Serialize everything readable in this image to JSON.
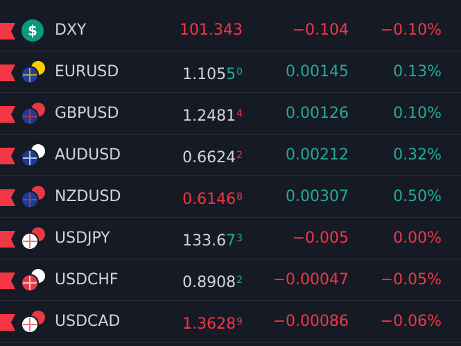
{
  "watchlist": {
    "colors": {
      "up": "#22ab94",
      "down": "#f23645",
      "neutral": "#d1d4dc"
    },
    "rows": [
      {
        "symbol": "DXY",
        "icon": "$",
        "price": [
          {
            "text": "101.343",
            "color": "down"
          }
        ],
        "price_sup": null,
        "change": "−0.104",
        "change_color": "down",
        "change_pct": "−0.10%",
        "pct_color": "down"
      },
      {
        "symbol": "EURUSD",
        "price": [
          {
            "text": "1.105",
            "color": "neutral"
          },
          {
            "text": "5",
            "color": "up"
          }
        ],
        "price_sup": {
          "text": "0",
          "color": "up"
        },
        "change": "0.00145",
        "change_color": "up",
        "change_pct": "0.13%",
        "pct_color": "up"
      },
      {
        "symbol": "GBPUSD",
        "price": [
          {
            "text": "1.2481",
            "color": "neutral"
          }
        ],
        "price_sup": {
          "text": "4",
          "color": "down"
        },
        "change": "0.00126",
        "change_color": "up",
        "change_pct": "0.10%",
        "pct_color": "up"
      },
      {
        "symbol": "AUDUSD",
        "price": [
          {
            "text": "0.6624",
            "color": "neutral"
          }
        ],
        "price_sup": {
          "text": "2",
          "color": "down"
        },
        "change": "0.00212",
        "change_color": "up",
        "change_pct": "0.32%",
        "pct_color": "up"
      },
      {
        "symbol": "NZDUSD",
        "price": [
          {
            "text": "0.6146",
            "color": "down"
          }
        ],
        "price_sup": {
          "text": "8",
          "color": "down"
        },
        "change": "0.00307",
        "change_color": "up",
        "change_pct": "0.50%",
        "pct_color": "up"
      },
      {
        "symbol": "USDJPY",
        "price": [
          {
            "text": "133.6",
            "color": "neutral"
          },
          {
            "text": "7",
            "color": "up"
          }
        ],
        "price_sup": {
          "text": "3",
          "color": "up"
        },
        "change": "−0.005",
        "change_color": "down",
        "change_pct": "0.00%",
        "pct_color": "down"
      },
      {
        "symbol": "USDCHF",
        "price": [
          {
            "text": "0.8908",
            "color": "neutral"
          }
        ],
        "price_sup": {
          "text": "2",
          "color": "up"
        },
        "change": "−0.00047",
        "change_color": "down",
        "change_pct": "−0.05%",
        "pct_color": "down"
      },
      {
        "symbol": "USDCAD",
        "price": [
          {
            "text": "1.3628",
            "color": "down"
          }
        ],
        "price_sup": {
          "text": "9",
          "color": "down"
        },
        "change": "−0.00086",
        "change_color": "down",
        "change_pct": "−0.06%",
        "pct_color": "down"
      }
    ]
  }
}
